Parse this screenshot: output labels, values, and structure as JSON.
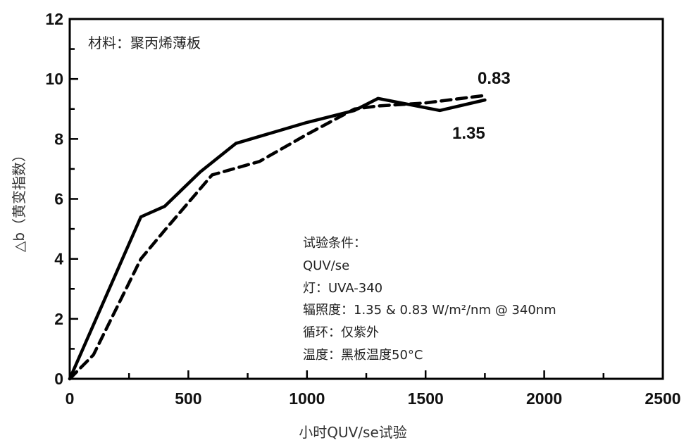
{
  "chart_data": {
    "type": "line",
    "title": "",
    "xlabel": "小时QUV/se试验",
    "ylabel": "△b（黄变指数）",
    "xlim": [
      0,
      2500
    ],
    "ylim": [
      0,
      12
    ],
    "xticks": [
      0,
      500,
      1000,
      1500,
      2000,
      2500
    ],
    "yticks": [
      0,
      2,
      4,
      6,
      8,
      10,
      12
    ],
    "xtick_labels": [
      "0",
      "500",
      "1000",
      "1500",
      "2000",
      "2500"
    ],
    "ytick_labels": [
      "0",
      "2",
      "4",
      "6",
      "8",
      "10",
      "12"
    ],
    "material_note": "材料：聚丙烯薄板",
    "conditions": [
      "试验条件：",
      "QUV/se",
      "灯：UVA-340",
      "辐照度：1.35 & 0.83 W/m²/nm @ 340nm",
      "循环：仅紫外",
      "温度：黑板温度50°C"
    ],
    "grid": false,
    "series": [
      {
        "name": "1.35",
        "line_style": "solid",
        "color": "#000000",
        "x": [
          0,
          300,
          400,
          550,
          700,
          1000,
          1200,
          1300,
          1560,
          1750
        ],
        "y": [
          0,
          5.4,
          5.75,
          6.9,
          7.85,
          8.55,
          8.95,
          9.35,
          8.95,
          9.3
        ]
      },
      {
        "name": "0.83",
        "line_style": "dashed",
        "color": "#000000",
        "x": [
          0,
          100,
          300,
          400,
          600,
          800,
          1000,
          1200,
          1300,
          1500,
          1750
        ],
        "y": [
          0,
          0.8,
          4.0,
          4.95,
          6.8,
          7.25,
          8.15,
          9.0,
          9.1,
          9.2,
          9.45
        ]
      }
    ]
  }
}
